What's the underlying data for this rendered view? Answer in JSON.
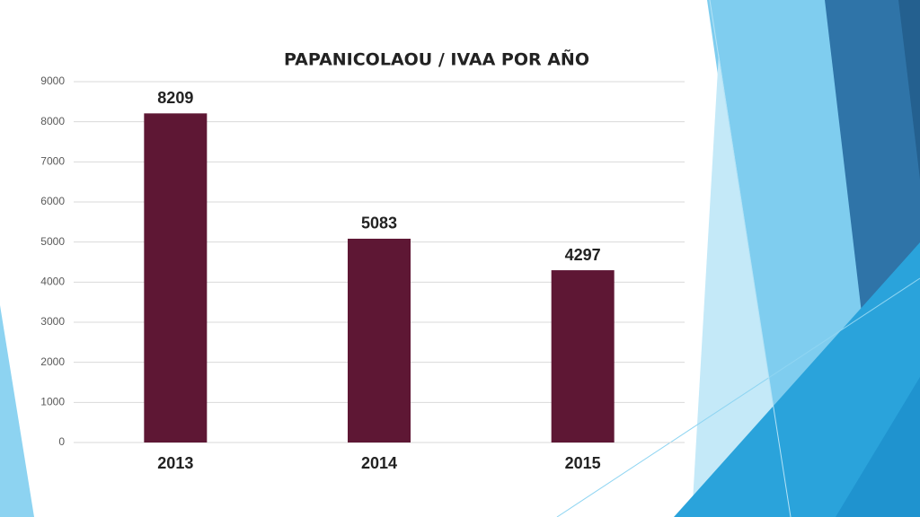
{
  "chart_data": {
    "type": "bar",
    "title": "PAPANICOLAOU / IVAA POR AÑO",
    "categories": [
      "2013",
      "2014",
      "2015"
    ],
    "values": [
      8209,
      5083,
      4297
    ],
    "color": "#5e1734",
    "ylim": [
      0,
      9000
    ],
    "yticks": [
      0,
      1000,
      2000,
      3000,
      4000,
      5000,
      6000,
      7000,
      8000,
      9000
    ],
    "grid": true
  }
}
